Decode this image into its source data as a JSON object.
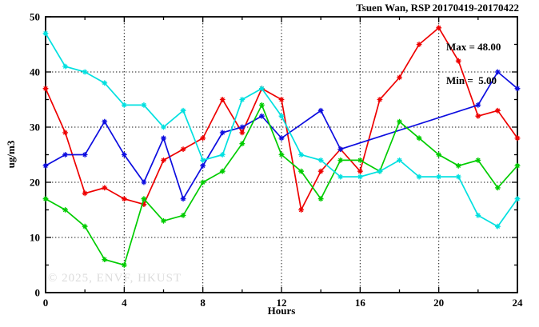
{
  "title": "Tsuen Wan, RSP 20170419-20170422",
  "annotation": {
    "max_label": "Max = 48.00",
    "min_label": "Min =  5.00"
  },
  "watermark": "© 2025, ENVF, HKUST",
  "chart_data": {
    "type": "line",
    "title": "Tsuen Wan, RSP 20170419-20170422",
    "xlabel": "Hours",
    "ylabel": "ug/m3",
    "xlim": [
      0,
      24
    ],
    "ylim": [
      0,
      50
    ],
    "grid": true,
    "legend_position": "none",
    "x_major_ticks": [
      0,
      4,
      8,
      12,
      16,
      20,
      24
    ],
    "x_minor_ticks": [
      2,
      6,
      10,
      14,
      18,
      22
    ],
    "y_major_ticks": [
      0,
      10,
      20,
      30,
      40,
      50
    ],
    "y_minor_ticks": [
      5,
      15,
      25,
      35,
      45
    ],
    "x": [
      0,
      1,
      2,
      3,
      4,
      5,
      6,
      7,
      8,
      9,
      10,
      11,
      12,
      13,
      14,
      15,
      16,
      17,
      18,
      19,
      20,
      21,
      22,
      23,
      24
    ],
    "series": [
      {
        "name": "red-line",
        "color": "#ee0000",
        "values": [
          37,
          29,
          18,
          19,
          17,
          16,
          24,
          26,
          28,
          35,
          29,
          37,
          35,
          15,
          22,
          26,
          22,
          35,
          39,
          45,
          48,
          42,
          32,
          33,
          28
        ]
      },
      {
        "name": "blue-line",
        "color": "#0d0de0",
        "values": [
          23,
          25,
          25,
          31,
          25,
          20,
          28,
          17,
          23,
          29,
          30,
          32,
          28,
          null,
          33,
          26,
          null,
          null,
          null,
          null,
          null,
          null,
          34,
          40,
          37
        ]
      },
      {
        "name": "green-line",
        "color": "#00cc00",
        "values": [
          17,
          15,
          12,
          6,
          5,
          17,
          13,
          14,
          20,
          22,
          27,
          34,
          25,
          22,
          17,
          24,
          24,
          22,
          31,
          28,
          25,
          23,
          24,
          19,
          23
        ]
      },
      {
        "name": "cyan-line",
        "color": "#00e0e0",
        "values": [
          47,
          41,
          40,
          38,
          34,
          34,
          30,
          33,
          24,
          25,
          35,
          37,
          32,
          25,
          24,
          21,
          21,
          22,
          24,
          21,
          21,
          21,
          14,
          12,
          17
        ]
      }
    ],
    "max": 48.0,
    "min": 5.0
  }
}
